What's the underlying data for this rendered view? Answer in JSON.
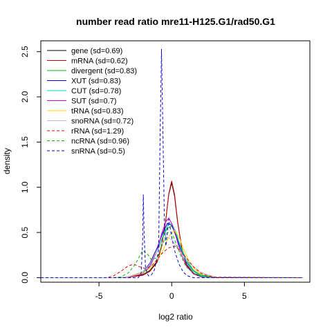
{
  "chart_data": {
    "type": "line",
    "title": "number read ratio mre11-H125.G1/rad50.G1",
    "xlabel": "log2 ratio",
    "ylabel": "density",
    "xlim": [
      -9,
      9.5
    ],
    "ylim": [
      -0.05,
      2.62
    ],
    "xticks": [
      -5,
      0,
      5
    ],
    "xtick_labels": [
      "-5",
      "0",
      "5"
    ],
    "yticks": [
      0,
      0.5,
      1,
      1.5,
      2,
      2.5
    ],
    "ytick_labels": [
      "0.0",
      "0.5",
      "1.0",
      "1.5",
      "2.0",
      "2.5"
    ],
    "grid": false,
    "legend_position": "top-left",
    "series": [
      {
        "name": "gene (sd=0.69)",
        "color": "#000000",
        "dash": "solid",
        "x": [
          -9,
          -4,
          -3,
          -2,
          -1.5,
          -1,
          -0.7,
          -0.4,
          -0.2,
          0,
          0.2,
          0.4,
          0.7,
          1,
          1.5,
          2,
          3,
          9
        ],
        "y": [
          0,
          0,
          0.005,
          0.03,
          0.08,
          0.18,
          0.35,
          0.65,
          0.92,
          1.05,
          0.9,
          0.62,
          0.32,
          0.15,
          0.05,
          0.015,
          0,
          0
        ]
      },
      {
        "name": "mRNA (sd=0.62)",
        "color": "#cc0000",
        "dash": "solid",
        "x": [
          -9,
          -4,
          -3,
          -2,
          -1.5,
          -1,
          -0.7,
          -0.4,
          -0.2,
          0,
          0.2,
          0.4,
          0.7,
          1,
          1.5,
          2,
          3,
          9
        ],
        "y": [
          0,
          0,
          0.004,
          0.025,
          0.07,
          0.17,
          0.34,
          0.64,
          0.93,
          1.07,
          0.92,
          0.63,
          0.31,
          0.14,
          0.045,
          0.012,
          0,
          0
        ]
      },
      {
        "name": "divergent (sd=0.83)",
        "color": "#00bb00",
        "dash": "solid",
        "x": [
          -9,
          -4,
          -3,
          -2,
          -1.5,
          -1,
          -0.6,
          -0.3,
          0,
          0.3,
          0.6,
          1,
          1.5,
          2,
          3,
          9
        ],
        "y": [
          0,
          0,
          0.01,
          0.06,
          0.15,
          0.3,
          0.45,
          0.55,
          0.57,
          0.48,
          0.35,
          0.2,
          0.08,
          0.03,
          0.003,
          0
        ]
      },
      {
        "name": "XUT (sd=0.83)",
        "color": "#0000cc",
        "dash": "solid",
        "x": [
          -9,
          -4,
          -3,
          -2,
          -1.5,
          -1,
          -0.6,
          -0.3,
          0,
          0.3,
          0.6,
          1,
          1.5,
          2,
          3,
          9
        ],
        "y": [
          0,
          0,
          0.01,
          0.06,
          0.16,
          0.33,
          0.5,
          0.6,
          0.58,
          0.46,
          0.32,
          0.17,
          0.07,
          0.02,
          0.002,
          0
        ]
      },
      {
        "name": "CUT (sd=0.78)",
        "color": "#00cccc",
        "dash": "solid",
        "x": [
          -9,
          -4,
          -3,
          -2,
          -1.5,
          -1,
          -0.6,
          -0.3,
          0,
          0.3,
          0.6,
          1,
          1.5,
          2,
          3,
          9
        ],
        "y": [
          0,
          0,
          0.008,
          0.05,
          0.14,
          0.3,
          0.46,
          0.57,
          0.6,
          0.5,
          0.34,
          0.18,
          0.07,
          0.02,
          0.002,
          0
        ]
      },
      {
        "name": "SUT (sd=0.7)",
        "color": "#cc00cc",
        "dash": "solid",
        "x": [
          -9,
          -4,
          -3,
          -2,
          -1.5,
          -1,
          -0.7,
          -0.4,
          -0.2,
          0,
          0.3,
          0.6,
          1,
          1.5,
          2,
          3,
          9
        ],
        "y": [
          0,
          0,
          0.005,
          0.04,
          0.12,
          0.3,
          0.48,
          0.62,
          0.66,
          0.6,
          0.45,
          0.28,
          0.13,
          0.04,
          0.01,
          0,
          0
        ]
      },
      {
        "name": "tRNA (sd=0.83)",
        "color": "#ffd700",
        "dash": "solid",
        "x": [
          -9,
          -4,
          -3,
          -2,
          -1.5,
          -1,
          -0.6,
          -0.3,
          0,
          0.2,
          0.5,
          0.8,
          1.2,
          1.6,
          2,
          3,
          9
        ],
        "y": [
          0,
          0,
          0.01,
          0.05,
          0.1,
          0.2,
          0.3,
          0.42,
          0.5,
          0.52,
          0.45,
          0.32,
          0.18,
          0.09,
          0.04,
          0.005,
          0
        ]
      },
      {
        "name": "snoRNA (sd=0.72)",
        "color": "#bbbbbb",
        "dash": "solid",
        "x": [
          -9,
          -4,
          -3,
          -2,
          -1.5,
          -1,
          -0.6,
          -0.3,
          0,
          0.3,
          0.6,
          1,
          1.5,
          2,
          2.5,
          3,
          9
        ],
        "y": [
          0,
          0,
          0.01,
          0.06,
          0.15,
          0.3,
          0.4,
          0.45,
          0.42,
          0.35,
          0.28,
          0.2,
          0.12,
          0.06,
          0.03,
          0.01,
          0
        ]
      },
      {
        "name": "rRNA (sd=1.29)",
        "color": "#dd0000",
        "dash": "dashed",
        "x": [
          -9,
          -4.5,
          -4,
          -3.5,
          -3,
          -2.6,
          -2.2,
          -1.8,
          -1.4,
          -1,
          -0.6,
          -0.2,
          0.2,
          0.6,
          1,
          1.5,
          2,
          2.5,
          3,
          9
        ],
        "y": [
          0,
          0,
          0.02,
          0.07,
          0.13,
          0.15,
          0.12,
          0.1,
          0.13,
          0.2,
          0.28,
          0.33,
          0.35,
          0.3,
          0.22,
          0.12,
          0.05,
          0.02,
          0.005,
          0
        ]
      },
      {
        "name": "ncRNA (sd=0.96)",
        "color": "#00bb00",
        "dash": "dashed",
        "x": [
          -9,
          -4,
          -3.5,
          -3,
          -2.5,
          -2.2,
          -2,
          -1.7,
          -1.4,
          -1,
          -0.6,
          -0.3,
          0,
          0.3,
          0.6,
          1,
          1.5,
          2,
          3,
          9
        ],
        "y": [
          0,
          0,
          0.01,
          0.05,
          0.15,
          0.24,
          0.3,
          0.27,
          0.2,
          0.22,
          0.38,
          0.5,
          0.5,
          0.38,
          0.25,
          0.12,
          0.05,
          0.01,
          0,
          0
        ]
      },
      {
        "name": "snRNA (sd=0.5)",
        "color": "#0000cc",
        "dash": "dashed",
        "x": [
          -9,
          -2.3,
          -2.1,
          -2,
          -1.95,
          -1.9,
          -1.8,
          -1.6,
          -1.4,
          -1.2,
          -0.9,
          -0.8,
          -0.7,
          -0.6,
          -0.5,
          -0.4,
          -0.3,
          -0.2,
          -0.1,
          0,
          0.2,
          0.5,
          0.8,
          1.1,
          1.5,
          9
        ],
        "y": [
          0,
          0,
          0.05,
          0.4,
          0.92,
          0.5,
          0.1,
          0.02,
          0.03,
          0.08,
          0.3,
          1.5,
          2.53,
          1.6,
          0.6,
          0.35,
          0.5,
          0.65,
          0.55,
          0.45,
          0.3,
          0.15,
          0.06,
          0.02,
          0,
          0
        ]
      }
    ]
  }
}
